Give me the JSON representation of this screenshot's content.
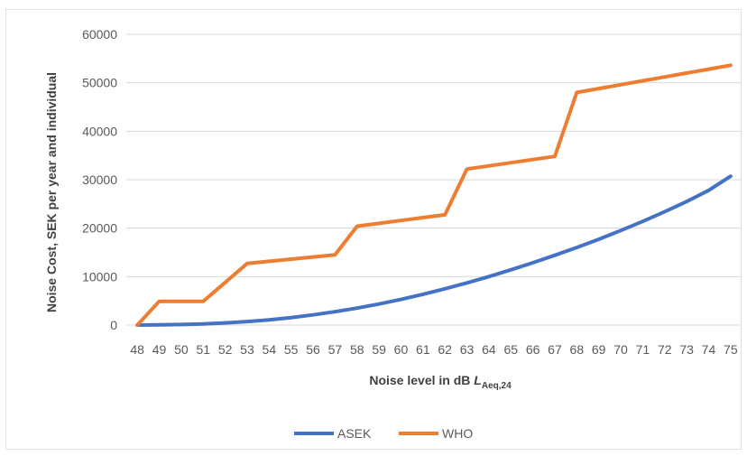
{
  "chart_data": {
    "type": "line",
    "title": "",
    "xlabel_main": "Noise level in dB ",
    "xlabel_italic": "L",
    "xlabel_sub": "Aeq,24",
    "ylabel": "Noise Cost, SEK per year and individual",
    "ylim": [
      0,
      60000
    ],
    "yticks": [
      0,
      10000,
      20000,
      30000,
      40000,
      50000,
      60000
    ],
    "ytick_labels": [
      "0",
      "10000",
      "20000",
      "30000",
      "40000",
      "50000",
      "60000"
    ],
    "grid": true,
    "legend_position": "bottom",
    "categories": [
      "48",
      "49",
      "50",
      "51",
      "52",
      "53",
      "54",
      "55",
      "56",
      "57",
      "58",
      "59",
      "60",
      "61",
      "62",
      "63",
      "64",
      "65",
      "66",
      "67",
      "68",
      "69",
      "70",
      "71",
      "72",
      "73",
      "74",
      "75"
    ],
    "series": [
      {
        "name": "ASEK",
        "color": "#4472C4",
        "values": [
          0,
          40,
          120,
          250,
          450,
          720,
          1080,
          1550,
          2100,
          2750,
          3500,
          4350,
          5300,
          6350,
          7500,
          8700,
          10000,
          11400,
          12850,
          14400,
          16000,
          17700,
          19500,
          21400,
          23400,
          25500,
          27800,
          30700
        ]
      },
      {
        "name": "WHO",
        "color": "#ED7D31",
        "values": [
          0,
          4900,
          4900,
          4900,
          8800,
          12700,
          13150,
          13600,
          14050,
          14500,
          20400,
          20990,
          21580,
          22170,
          22760,
          32200,
          32850,
          33500,
          34150,
          34800,
          48000,
          48800,
          49600,
          50400,
          51200,
          52000,
          52800,
          53600
        ]
      }
    ]
  }
}
